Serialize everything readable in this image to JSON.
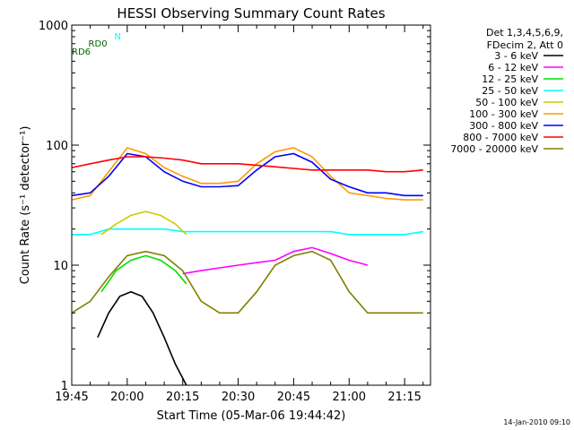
{
  "chart_data": {
    "type": "line",
    "title": "HESSI Observing Summary Count Rates",
    "xlabel": "Start Time (05-Mar-06 19:44:42)",
    "ylabel": "Count Rate (s⁻¹ detector⁻¹)",
    "ylim": [
      1,
      1000
    ],
    "yscale": "log",
    "xlim": [
      0,
      97
    ],
    "x_ticks": [
      {
        "t": 0,
        "label": "19:45"
      },
      {
        "t": 15,
        "label": "20:00"
      },
      {
        "t": 30,
        "label": "20:15"
      },
      {
        "t": 45,
        "label": "20:30"
      },
      {
        "t": 60,
        "label": "20:45"
      },
      {
        "t": 75,
        "label": "21:00"
      },
      {
        "t": 90,
        "label": "21:15"
      }
    ],
    "y_ticks": [
      {
        "v": 1,
        "label": "1"
      },
      {
        "v": 10,
        "label": "10"
      },
      {
        "v": 100,
        "label": "100"
      },
      {
        "v": 1000,
        "label": "1000"
      }
    ],
    "legend_header": [
      "Det 1,3,4,5,6,9,",
      "FDecim 2, Att 0"
    ],
    "series": [
      {
        "name": "3 - 6 keV",
        "color": "#000000",
        "x": [
          7,
          10,
          13,
          16,
          19,
          22,
          25,
          28,
          31
        ],
        "y": [
          2.5,
          4,
          5.5,
          6,
          5.5,
          4,
          2.5,
          1.5,
          1
        ]
      },
      {
        "name": "6 - 12 keV",
        "color": "#ff00ff",
        "x": [
          30,
          35,
          40,
          45,
          50,
          55,
          60,
          65,
          70,
          75,
          80
        ],
        "y": [
          8.5,
          9,
          9.5,
          10,
          10.5,
          11,
          13,
          14,
          12.5,
          11,
          10
        ]
      },
      {
        "name": "12 - 25 keV",
        "color": "#00dd00",
        "x": [
          8,
          12,
          16,
          20,
          24,
          28,
          31
        ],
        "y": [
          6,
          9,
          11,
          12,
          11,
          9,
          7
        ]
      },
      {
        "name": "25 - 50 keV",
        "color": "#00ffff",
        "x": [
          0,
          5,
          10,
          15,
          20,
          25,
          30,
          35,
          40,
          45,
          50,
          55,
          60,
          65,
          70,
          75,
          80,
          85,
          90,
          95
        ],
        "y": [
          18,
          18,
          20,
          20,
          20,
          20,
          19,
          19,
          19,
          19,
          19,
          19,
          19,
          19,
          19,
          18,
          18,
          18,
          18,
          19
        ]
      },
      {
        "name": "50 - 100 keV",
        "color": "#cccc00",
        "x": [
          8,
          12,
          16,
          20,
          24,
          28,
          31
        ],
        "y": [
          18,
          22,
          26,
          28,
          26,
          22,
          18
        ]
      },
      {
        "name": "100 - 300 keV",
        "color": "#ff9900",
        "x": [
          0,
          5,
          10,
          15,
          20,
          25,
          30,
          35,
          40,
          45,
          50,
          55,
          60,
          65,
          70,
          75,
          80,
          85,
          90,
          95
        ],
        "y": [
          35,
          38,
          60,
          95,
          85,
          65,
          55,
          48,
          48,
          50,
          70,
          88,
          95,
          80,
          55,
          40,
          38,
          36,
          35,
          35
        ]
      },
      {
        "name": "300 - 800 keV",
        "color": "#0000ff",
        "x": [
          0,
          5,
          10,
          15,
          20,
          25,
          30,
          35,
          40,
          45,
          50,
          55,
          60,
          65,
          70,
          75,
          80,
          85,
          90,
          95
        ],
        "y": [
          38,
          40,
          55,
          85,
          80,
          60,
          50,
          45,
          45,
          46,
          62,
          80,
          85,
          72,
          52,
          45,
          40,
          40,
          38,
          38
        ]
      },
      {
        "name": "800 - 7000 keV",
        "color": "#ff0000",
        "x": [
          0,
          5,
          10,
          15,
          20,
          25,
          30,
          35,
          40,
          45,
          50,
          55,
          60,
          65,
          70,
          75,
          80,
          85,
          90,
          95
        ],
        "y": [
          65,
          70,
          75,
          80,
          80,
          78,
          75,
          70,
          70,
          70,
          68,
          66,
          64,
          62,
          62,
          62,
          62,
          60,
          60,
          62
        ]
      },
      {
        "name": "7000 - 20000 keV",
        "color": "#808000",
        "x": [
          0,
          5,
          10,
          15,
          20,
          25,
          30,
          35,
          40,
          45,
          50,
          55,
          60,
          65,
          70,
          75,
          80,
          85,
          90,
          95
        ],
        "y": [
          4,
          5,
          8,
          12,
          13,
          12,
          9,
          5,
          4,
          4,
          6,
          10,
          12,
          13,
          11,
          6,
          4,
          4,
          4,
          4
        ]
      }
    ],
    "annotations": [
      {
        "text": "N",
        "color": "#00ffff"
      },
      {
        "text": "RD0",
        "color": "#006600"
      },
      {
        "text": "RD6",
        "color": "#006600"
      }
    ],
    "footer": "14-Jan-2010 09:10"
  }
}
